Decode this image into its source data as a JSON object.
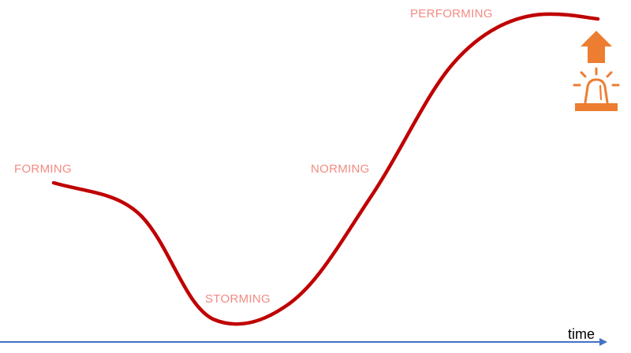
{
  "stages": [
    {
      "id": "forming",
      "label": "FORMING"
    },
    {
      "id": "storming",
      "label": "STORMING"
    },
    {
      "id": "norming",
      "label": "NORMING"
    },
    {
      "id": "performing",
      "label": "PERFORMING"
    }
  ],
  "axis": {
    "label": "time"
  },
  "icons": {
    "up_arrow": "up-arrow-icon",
    "alarm": "siren-icon"
  },
  "colors": {
    "curve": "#c00000",
    "stage_text": "#f28b82",
    "axis": "#4472c4",
    "icon": "#ed7d31"
  }
}
